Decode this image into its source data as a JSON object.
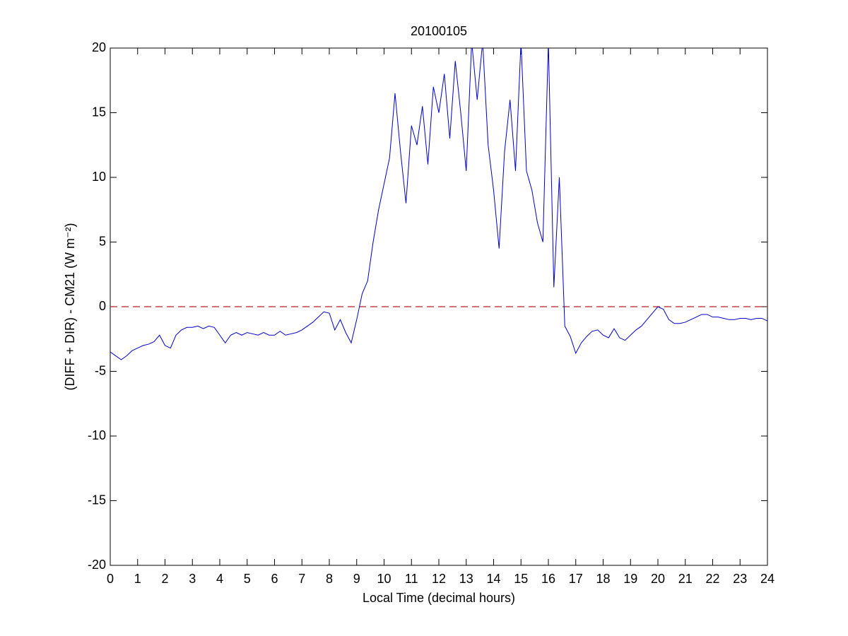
{
  "chart_data": {
    "type": "line",
    "title": "20100105",
    "xlabel": "Local Time (decimal hours)",
    "ylabel": "(DIFF + DIR) - CM21 (W m⁻²)",
    "x": [
      0,
      0.2,
      0.4,
      0.6,
      0.8,
      1,
      1.2,
      1.4,
      1.6,
      1.8,
      2,
      2.2,
      2.4,
      2.6,
      2.8,
      3,
      3.2,
      3.4,
      3.6,
      3.8,
      4,
      4.2,
      4.4,
      4.6,
      4.8,
      5,
      5.2,
      5.4,
      5.6,
      5.8,
      6,
      6.2,
      6.4,
      6.6,
      6.8,
      7,
      7.2,
      7.4,
      7.6,
      7.8,
      8,
      8.2,
      8.4,
      8.6,
      8.8,
      9,
      9.2,
      9.4,
      9.6,
      9.8,
      10,
      10.2,
      10.4,
      10.6,
      10.8,
      11,
      11.2,
      11.4,
      11.6,
      11.8,
      12,
      12.2,
      12.4,
      12.6,
      12.8,
      13,
      13.2,
      13.4,
      13.6,
      13.8,
      14,
      14.2,
      14.4,
      14.6,
      14.8,
      15,
      15.2,
      15.4,
      15.6,
      15.8,
      16,
      16.2,
      16.4,
      16.6,
      16.8,
      17,
      17.2,
      17.4,
      17.6,
      17.8,
      18,
      18.2,
      18.4,
      18.6,
      18.8,
      19,
      19.2,
      19.4,
      19.6,
      19.8,
      20,
      20.2,
      20.4,
      20.6,
      20.8,
      21,
      21.2,
      21.4,
      21.6,
      21.8,
      22,
      22.2,
      22.4,
      22.6,
      22.8,
      23,
      23.2,
      23.4,
      23.6,
      23.8,
      24
    ],
    "series": [
      {
        "color": "#0000cc",
        "values": [
          -3.5,
          -3.8,
          -4.1,
          -3.8,
          -3.4,
          -3.2,
          -3.0,
          -2.9,
          -2.7,
          -2.2,
          -3.0,
          -3.2,
          -2.2,
          -1.8,
          -1.6,
          -1.6,
          -1.5,
          -1.7,
          -1.5,
          -1.6,
          -2.2,
          -2.8,
          -2.2,
          -2.0,
          -2.2,
          -2.0,
          -2.1,
          -2.2,
          -2.0,
          -2.2,
          -2.2,
          -1.9,
          -2.2,
          -2.1,
          -2.0,
          -1.8,
          -1.5,
          -1.2,
          -0.8,
          -0.4,
          -0.5,
          -1.8,
          -1.0,
          -2.0,
          -2.8,
          -1.0,
          1.0,
          2.0,
          5.0,
          7.5,
          9.5,
          11.5,
          16.5,
          12.0,
          8.0,
          14.0,
          12.5,
          15.5,
          11.0,
          17.0,
          15.0,
          18.0,
          13.0,
          19.0,
          15.0,
          10.5,
          20.5,
          16.0,
          20.5,
          12.5,
          9.0,
          4.5,
          12.0,
          16.0,
          10.5,
          20.5,
          10.5,
          9.0,
          6.5,
          5.0,
          20.5,
          1.5,
          10.0,
          -1.5,
          -2.3,
          -3.6,
          -2.8,
          -2.3,
          -1.9,
          -1.8,
          -2.2,
          -2.4,
          -1.7,
          -2.4,
          -2.6,
          -2.2,
          -1.8,
          -1.5,
          -1.0,
          -0.5,
          0.0,
          -0.2,
          -1.0,
          -1.3,
          -1.3,
          -1.2,
          -1.0,
          -0.8,
          -0.6,
          -0.6,
          -0.8,
          -0.8,
          -0.9,
          -1.0,
          -1.0,
          -0.9,
          -0.9,
          -1.0,
          -0.9,
          -0.9,
          -1.1
        ]
      }
    ],
    "reference_line": 0,
    "reference_color": "#b22222",
    "xlim": [
      0,
      24
    ],
    "xticks": [
      0,
      1,
      2,
      3,
      4,
      5,
      6,
      7,
      8,
      9,
      10,
      11,
      12,
      13,
      14,
      15,
      16,
      17,
      18,
      19,
      20,
      21,
      22,
      23,
      24
    ],
    "ylim": [
      -20,
      20
    ],
    "yticks": [
      -20,
      -15,
      -10,
      -5,
      0,
      5,
      10,
      15,
      20
    ]
  }
}
